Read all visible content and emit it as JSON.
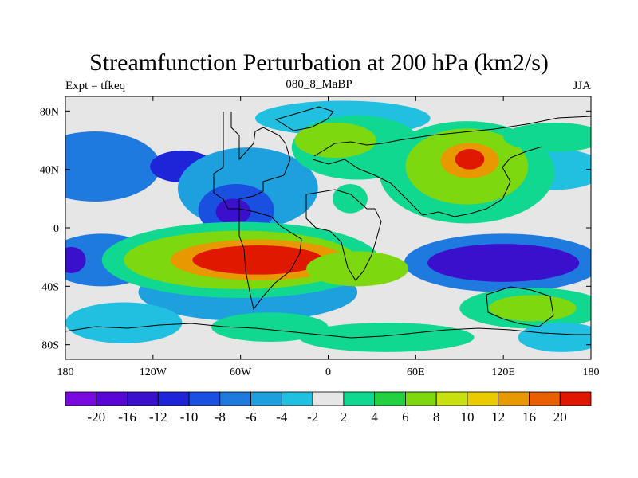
{
  "header": {
    "title": "Streamfunction Perturbation at 200 hPa (km2/s)",
    "left_label": "Expt = tfkeq",
    "center_label": "080_8_MaBP",
    "right_label": "JJA"
  },
  "map": {
    "projection": "cylindrical-equidistant",
    "lon_range": [
      -180,
      180
    ],
    "lat_range": [
      -90,
      90
    ],
    "x_ticks": [
      {
        "lon": -180,
        "label": "180"
      },
      {
        "lon": -120,
        "label": "120W"
      },
      {
        "lon": -60,
        "label": "60W"
      },
      {
        "lon": 0,
        "label": "0"
      },
      {
        "lon": 60,
        "label": "60E"
      },
      {
        "lon": 120,
        "label": "120E"
      },
      {
        "lon": 180,
        "label": "180"
      }
    ],
    "y_ticks": [
      {
        "lat": 80,
        "label": "80N"
      },
      {
        "lat": 40,
        "label": "40N"
      },
      {
        "lat": 0,
        "label": "0"
      },
      {
        "lat": -40,
        "label": "40S"
      },
      {
        "lat": -80,
        "label": "80S"
      }
    ],
    "background_color": "#e6e6e6",
    "features": [
      {
        "lon": -160,
        "lat": 42,
        "rx": 45,
        "ry": 24,
        "value": -7
      },
      {
        "lon": -100,
        "lat": 42,
        "rx": 22,
        "ry": 11,
        "value": -11
      },
      {
        "lon": -155,
        "lat": -22,
        "rx": 38,
        "ry": 18,
        "value": -7
      },
      {
        "lon": -176,
        "lat": -22,
        "rx": 10,
        "ry": 9,
        "value": -13
      },
      {
        "lon": -55,
        "lat": 27,
        "rx": 48,
        "ry": 28,
        "value": -5
      },
      {
        "lon": -63,
        "lat": 12,
        "rx": 26,
        "ry": 18,
        "value": -9
      },
      {
        "lon": -65,
        "lat": 11,
        "rx": 12,
        "ry": 9,
        "value": -15
      },
      {
        "lon": -55,
        "lat": -44,
        "rx": 75,
        "ry": 20,
        "value": -5
      },
      {
        "lon": 120,
        "lat": -24,
        "rx": 68,
        "ry": 20,
        "value": -8
      },
      {
        "lon": 120,
        "lat": -24,
        "rx": 52,
        "ry": 13,
        "value": -15
      },
      {
        "lon": 155,
        "lat": 40,
        "rx": 35,
        "ry": 14,
        "value": -4
      },
      {
        "lon": 10,
        "lat": 75,
        "rx": 60,
        "ry": 12,
        "value": -3
      },
      {
        "lon": -140,
        "lat": -65,
        "rx": 40,
        "ry": 14,
        "value": -3
      },
      {
        "lon": -60,
        "lat": -22,
        "rx": 95,
        "ry": 26,
        "value": 3
      },
      {
        "lon": -60,
        "lat": -22,
        "rx": 80,
        "ry": 20,
        "value": 7
      },
      {
        "lon": -48,
        "lat": -22,
        "rx": 60,
        "ry": 14,
        "value": 14
      },
      {
        "lon": -48,
        "lat": -22,
        "rx": 45,
        "ry": 10,
        "value": 20
      },
      {
        "lon": 20,
        "lat": -28,
        "rx": 35,
        "ry": 12,
        "value": 7
      },
      {
        "lon": 20,
        "lat": 55,
        "rx": 45,
        "ry": 22,
        "value": 3
      },
      {
        "lon": 5,
        "lat": 60,
        "rx": 28,
        "ry": 12,
        "value": 7
      },
      {
        "lon": 95,
        "lat": 38,
        "rx": 60,
        "ry": 35,
        "value": 3
      },
      {
        "lon": 95,
        "lat": 42,
        "rx": 42,
        "ry": 26,
        "value": 7
      },
      {
        "lon": 97,
        "lat": 46,
        "rx": 20,
        "ry": 12,
        "value": 14
      },
      {
        "lon": 97,
        "lat": 47,
        "rx": 10,
        "ry": 7,
        "value": 20
      },
      {
        "lon": 15,
        "lat": 20,
        "rx": 12,
        "ry": 10,
        "value": 3
      },
      {
        "lon": 140,
        "lat": -55,
        "rx": 50,
        "ry": 14,
        "value": 3
      },
      {
        "lon": 140,
        "lat": -55,
        "rx": 30,
        "ry": 9,
        "value": 7
      },
      {
        "lon": -40,
        "lat": -68,
        "rx": 40,
        "ry": 10,
        "value": 3
      },
      {
        "lon": 40,
        "lat": -75,
        "rx": 60,
        "ry": 10,
        "value": 3
      },
      {
        "lon": 155,
        "lat": 62,
        "rx": 35,
        "ry": 10,
        "value": 3
      },
      {
        "lon": 160,
        "lat": -75,
        "rx": 30,
        "ry": 10,
        "value": -3
      }
    ]
  },
  "colorbar": {
    "labels": [
      "-20",
      "-16",
      "-12",
      "-10",
      "-8",
      "-6",
      "-4",
      "-2",
      "2",
      "4",
      "6",
      "8",
      "10",
      "12",
      "16",
      "20"
    ],
    "levels": [
      -20,
      -16,
      -12,
      -10,
      -8,
      -6,
      -4,
      -2,
      2,
      4,
      6,
      8,
      10,
      12,
      16,
      20
    ],
    "colors": [
      "#7b0ae0",
      "#5a05d6",
      "#3b10cc",
      "#1e24d8",
      "#1a50e0",
      "#1f7ae0",
      "#1fa0de",
      "#22c0e0",
      "#e6e6e6",
      "#10d890",
      "#22d040",
      "#7dd810",
      "#c8e010",
      "#e8cc00",
      "#e89800",
      "#e86000",
      "#e01800"
    ]
  }
}
